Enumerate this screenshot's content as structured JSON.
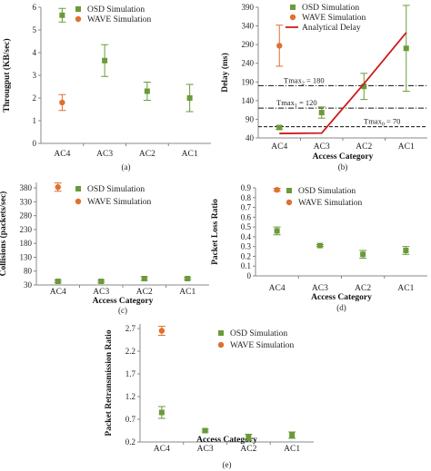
{
  "colors": {
    "osd": "#6a9a3a",
    "wave": "#e07030",
    "analytical": "#d01818",
    "axis": "#888888",
    "text": "#222222"
  },
  "chart_data": [
    {
      "type": "scatter",
      "title": "",
      "caption": "(a)",
      "xlabel": "",
      "ylabel": "Througput (KB/sec)",
      "categories": [
        "AC4",
        "AC3",
        "AC2",
        "AC1"
      ],
      "ylim": [
        0,
        6
      ],
      "yticks": [
        0,
        1,
        2,
        3,
        4,
        5,
        6
      ],
      "legend_position": "top-center",
      "series": [
        {
          "name": "OSD Simulation",
          "marker": "square",
          "color": "#6a9a3a",
          "values": [
            5.65,
            3.65,
            2.3,
            2.0
          ],
          "err": [
            0.3,
            0.7,
            0.4,
            0.6
          ]
        },
        {
          "name": "WAVE Simulation",
          "marker": "circle",
          "color": "#e07030",
          "values": [
            1.8,
            null,
            null,
            null
          ],
          "err": [
            0.35,
            null,
            null,
            null
          ]
        }
      ]
    },
    {
      "type": "scatter",
      "title": "",
      "caption": "(b)",
      "xlabel": "Access Category",
      "ylabel": "Delay (ms)",
      "categories": [
        "AC4",
        "AC3",
        "AC2",
        "AC1"
      ],
      "ylim": [
        40,
        390
      ],
      "yticks": [
        40,
        90,
        140,
        190,
        240,
        290,
        340,
        390
      ],
      "legend_position": "top-right",
      "series": [
        {
          "name": "OSD Simulation",
          "marker": "square",
          "color": "#6a9a3a",
          "values": [
            68,
            108,
            178,
            280
          ],
          "err": [
            5,
            15,
            35,
            115
          ]
        },
        {
          "name": "WAVE Simulation",
          "marker": "circle",
          "color": "#e07030",
          "values": [
            287,
            null,
            null,
            null
          ],
          "err": [
            55,
            null,
            null,
            null
          ]
        },
        {
          "name": "Analytical Delay",
          "marker": "line",
          "color": "#d01818",
          "values": [
            52,
            53,
            185,
            322
          ]
        }
      ],
      "reference_lines": [
        {
          "label": "Tmax",
          "sub": "2",
          "suffix": " = 180",
          "value": 180,
          "style": "dash-dot"
        },
        {
          "label": "Tmax",
          "sub": "1",
          "suffix": " = 120",
          "value": 120,
          "style": "dash-dot"
        },
        {
          "label": "Tmax",
          "sub": "0",
          "suffix": " = 70",
          "value": 70,
          "style": "dashed"
        }
      ]
    },
    {
      "type": "scatter",
      "title": "",
      "caption": "(c)",
      "xlabel": "Access Category",
      "ylabel": "Collisions (packets/sec)",
      "categories": [
        "AC4",
        "AC3",
        "AC2",
        "AC1"
      ],
      "ylim": [
        30,
        400
      ],
      "yticks": [
        30,
        80,
        130,
        180,
        230,
        280,
        330,
        380
      ],
      "legend_position": "top-center",
      "series": [
        {
          "name": "OSD Simulation",
          "marker": "square",
          "color": "#6a9a3a",
          "values": [
            43,
            43,
            53,
            53
          ],
          "err": [
            4,
            4,
            6,
            4
          ]
        },
        {
          "name": "WAVE Simulation",
          "marker": "circle",
          "color": "#e07030",
          "values": [
            383,
            null,
            null,
            null
          ],
          "err": [
            15,
            null,
            null,
            null
          ]
        }
      ]
    },
    {
      "type": "scatter",
      "title": "",
      "caption": "(d)",
      "xlabel": "Access Category",
      "ylabel": "Packet Loss Ratio",
      "categories": [
        "AC4",
        "AC3",
        "AC2",
        "AC1"
      ],
      "ylim": [
        0,
        0.9
      ],
      "yticks": [
        "0",
        "0.1",
        "0.2",
        "0.3",
        "0.4",
        "0.5",
        "0.6",
        "0.7",
        "0.8",
        "0.9"
      ],
      "legend_position": "top-center",
      "series": [
        {
          "name": "OSD Simulation",
          "marker": "square",
          "color": "#6a9a3a",
          "values": [
            0.46,
            0.31,
            0.22,
            0.26
          ],
          "err": [
            0.04,
            0.01,
            0.04,
            0.04
          ]
        },
        {
          "name": "WAVE Simulation",
          "marker": "circle",
          "color": "#e07030",
          "values": [
            0.88,
            null,
            null,
            null
          ],
          "err": [
            0.015,
            null,
            null,
            null
          ]
        }
      ]
    },
    {
      "type": "scatter",
      "title": "",
      "caption": "(e)",
      "xlabel": "Access Category",
      "ylabel": "Packet Retransmission Ratio",
      "categories": [
        "AC4",
        "AC3",
        "AC2",
        "AC1"
      ],
      "ylim": [
        0.2,
        2.8
      ],
      "yticks": [
        "0.2",
        "0.7",
        "1.2",
        "1.7",
        "2.2",
        "2.7"
      ],
      "legend_position": "top-center",
      "series": [
        {
          "name": "OSD Simulation",
          "marker": "square",
          "color": "#6a9a3a",
          "values": [
            0.85,
            0.45,
            0.3,
            0.35
          ],
          "err": [
            0.13,
            0.03,
            0.07,
            0.07
          ]
        },
        {
          "name": "WAVE Simulation",
          "marker": "circle",
          "color": "#e07030",
          "values": [
            2.65,
            null,
            null,
            null
          ],
          "err": [
            0.1,
            null,
            null,
            null
          ]
        }
      ]
    }
  ]
}
